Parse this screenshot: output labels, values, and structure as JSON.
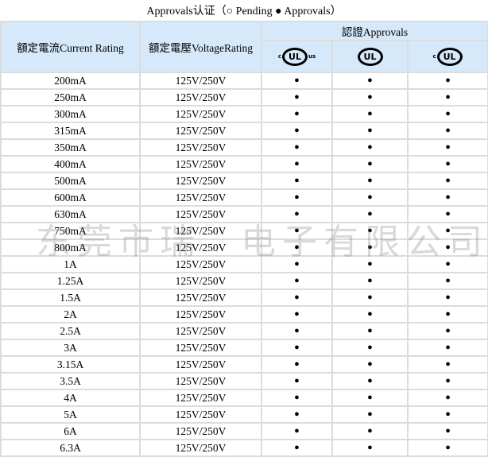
{
  "title": "Approvals认证（○ Pending ● Approvals）",
  "headers": {
    "current": "額定電流Current Rating",
    "voltage": "額定電壓VoltageRating",
    "approvals": "認證Approvals",
    "marks": [
      {
        "icon": "c-ul-us-recognized-icon",
        "left": "c",
        "center": "UL",
        "right": "us"
      },
      {
        "icon": "ul-listed-icon",
        "left": "",
        "center": "UL",
        "right": ""
      },
      {
        "icon": "c-ul-listed-icon",
        "left": "c",
        "center": "UL",
        "right": ""
      }
    ]
  },
  "rows": [
    {
      "current": "200mA",
      "voltage": "125V/250V",
      "a": [
        "●",
        "●",
        "●"
      ]
    },
    {
      "current": "250mA",
      "voltage": "125V/250V",
      "a": [
        "●",
        "●",
        "●"
      ]
    },
    {
      "current": "300mA",
      "voltage": "125V/250V",
      "a": [
        "●",
        "●",
        "●"
      ]
    },
    {
      "current": "315mA",
      "voltage": "125V/250V",
      "a": [
        "●",
        "●",
        "●"
      ]
    },
    {
      "current": "350mA",
      "voltage": "125V/250V",
      "a": [
        "●",
        "●",
        "●"
      ]
    },
    {
      "current": "400mA",
      "voltage": "125V/250V",
      "a": [
        "●",
        "●",
        "●"
      ]
    },
    {
      "current": "500mA",
      "voltage": "125V/250V",
      "a": [
        "●",
        "●",
        "●"
      ]
    },
    {
      "current": "600mA",
      "voltage": "125V/250V",
      "a": [
        "●",
        "●",
        "●"
      ]
    },
    {
      "current": "630mA",
      "voltage": "125V/250V",
      "a": [
        "●",
        "●",
        "●"
      ]
    },
    {
      "current": "750mA",
      "voltage": "125V/250V",
      "a": [
        "●",
        "●",
        "●"
      ]
    },
    {
      "current": "800mA",
      "voltage": "125V/250V",
      "a": [
        "●",
        "●",
        "●"
      ]
    },
    {
      "current": "1A",
      "voltage": "125V/250V",
      "a": [
        "●",
        "●",
        "●"
      ]
    },
    {
      "current": "1.25A",
      "voltage": "125V/250V",
      "a": [
        "●",
        "●",
        "●"
      ]
    },
    {
      "current": "1.5A",
      "voltage": "125V/250V",
      "a": [
        "●",
        "●",
        "●"
      ]
    },
    {
      "current": "2A",
      "voltage": "125V/250V",
      "a": [
        "●",
        "●",
        "●"
      ]
    },
    {
      "current": "2.5A",
      "voltage": "125V/250V",
      "a": [
        "●",
        "●",
        "●"
      ]
    },
    {
      "current": "3A",
      "voltage": "125V/250V",
      "a": [
        "●",
        "●",
        "●"
      ]
    },
    {
      "current": "3.15A",
      "voltage": "125V/250V",
      "a": [
        "●",
        "●",
        "●"
      ]
    },
    {
      "current": "3.5A",
      "voltage": "125V/250V",
      "a": [
        "●",
        "●",
        "●"
      ]
    },
    {
      "current": "4A",
      "voltage": "125V/250V",
      "a": [
        "●",
        "●",
        "●"
      ]
    },
    {
      "current": "5A",
      "voltage": "125V/250V",
      "a": [
        "●",
        "●",
        "●"
      ]
    },
    {
      "current": "6A",
      "voltage": "125V/250V",
      "a": [
        "●",
        "●",
        "●"
      ]
    },
    {
      "current": "6.3A",
      "voltage": "125V/250V",
      "a": [
        "●",
        "●",
        "●"
      ]
    }
  ],
  "watermark": {
    "part1": "东莞市瑞",
    "part2": "电子有限公司"
  },
  "colors": {
    "header_bg": "#d6e9fa",
    "border": "#dcdcdc"
  }
}
